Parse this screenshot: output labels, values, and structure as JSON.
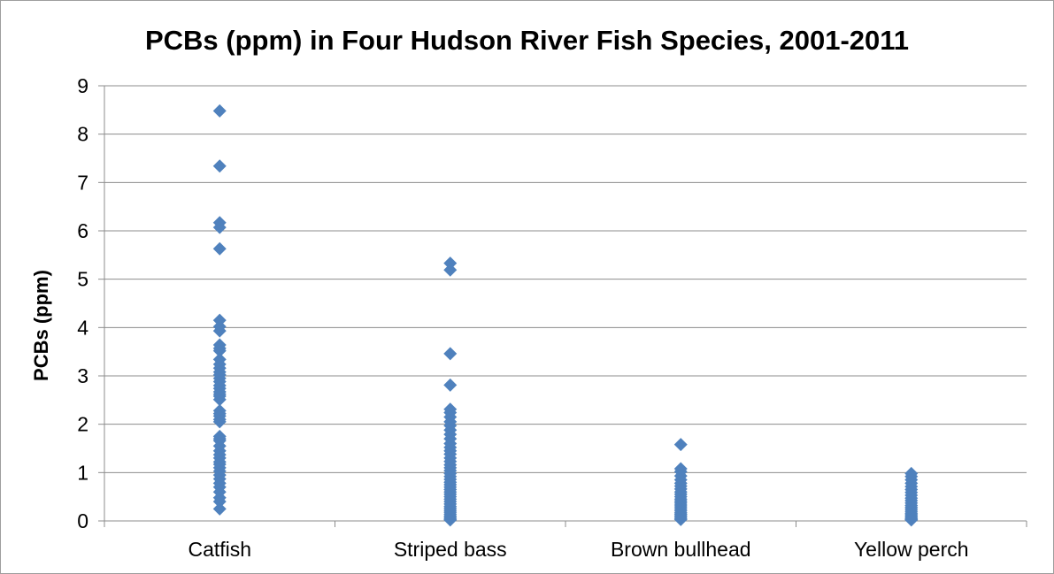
{
  "chart_data": {
    "type": "scatter",
    "title": "PCBs (ppm) in Four Hudson River Fish Species, 2001-2011",
    "xlabel": "",
    "ylabel": "PCBs (ppm)",
    "categories": [
      "Catfish",
      "Striped bass",
      "Brown bullhead",
      "Yellow perch"
    ],
    "ylim": [
      0,
      9
    ],
    "yticks": [
      "0",
      "1",
      "2",
      "3",
      "4",
      "5",
      "6",
      "7",
      "8",
      "9"
    ],
    "grid": true,
    "legend": "none",
    "marker_color": "#4F81BD",
    "series": [
      {
        "category": "Catfish",
        "values": [
          8.48,
          7.34,
          6.17,
          6.07,
          5.63,
          4.15,
          4.02,
          3.93,
          3.64,
          3.57,
          3.52,
          3.34,
          3.24,
          3.16,
          3.08,
          3.02,
          2.95,
          2.88,
          2.8,
          2.74,
          2.67,
          2.62,
          2.58,
          2.51,
          2.28,
          2.22,
          2.17,
          2.1,
          2.05,
          1.75,
          1.7,
          1.66,
          1.55,
          1.45,
          1.37,
          1.3,
          1.22,
          1.17,
          1.1,
          1.03,
          0.95,
          0.87,
          0.78,
          0.7,
          0.6,
          0.48,
          0.4,
          0.25
        ]
      },
      {
        "category": "Striped bass",
        "values": [
          5.33,
          5.19,
          3.46,
          2.81,
          2.31,
          2.24,
          2.15,
          2.05,
          1.97,
          1.88,
          1.79,
          1.7,
          1.6,
          1.52,
          1.45,
          1.38,
          1.3,
          1.23,
          1.16,
          1.1,
          1.04,
          0.98,
          0.92,
          0.86,
          0.8,
          0.75,
          0.7,
          0.65,
          0.6,
          0.55,
          0.5,
          0.45,
          0.4,
          0.35,
          0.3,
          0.26,
          0.22,
          0.18,
          0.14,
          0.1,
          0.07,
          0.04,
          0.02
        ]
      },
      {
        "category": "Brown bullhead",
        "values": [
          1.58,
          1.08,
          1.02,
          0.93,
          0.85,
          0.78,
          0.72,
          0.66,
          0.6,
          0.55,
          0.5,
          0.45,
          0.41,
          0.37,
          0.33,
          0.29,
          0.25,
          0.21,
          0.17,
          0.14,
          0.11,
          0.08,
          0.05,
          0.03
        ]
      },
      {
        "category": "Yellow perch",
        "values": [
          0.98,
          0.92,
          0.85,
          0.78,
          0.71,
          0.65,
          0.59,
          0.53,
          0.47,
          0.42,
          0.37,
          0.32,
          0.28,
          0.24,
          0.2,
          0.16,
          0.13,
          0.1,
          0.07,
          0.05,
          0.03,
          0.02
        ]
      }
    ]
  }
}
